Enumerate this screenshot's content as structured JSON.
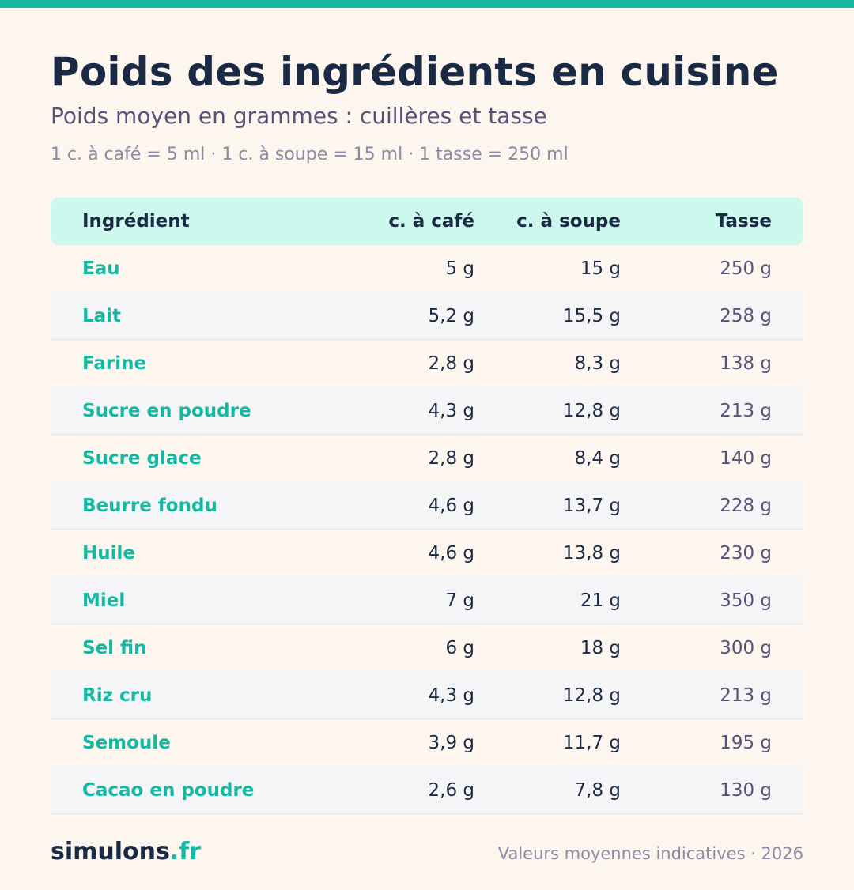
{
  "header": {
    "title": "Poids des ingrédients en cuisine",
    "subtitle": "Poids moyen en grammes : cuillères et tasse",
    "note": "1 c. à café = 5 ml · 1 c. à soupe = 15 ml · 1 tasse = 250 ml"
  },
  "table": {
    "columns": [
      "Ingrédient",
      "c. à café",
      "c. à soupe",
      "Tasse"
    ],
    "rows": [
      [
        "Eau",
        "5 g",
        "15 g",
        "250 g"
      ],
      [
        "Lait",
        "5,2 g",
        "15,5 g",
        "258 g"
      ],
      [
        "Farine",
        "2,8 g",
        "8,3 g",
        "138 g"
      ],
      [
        "Sucre en poudre",
        "4,3 g",
        "12,8 g",
        "213 g"
      ],
      [
        "Sucre glace",
        "2,8 g",
        "8,4 g",
        "140 g"
      ],
      [
        "Beurre fondu",
        "4,6 g",
        "13,7 g",
        "228 g"
      ],
      [
        "Huile",
        "4,6 g",
        "13,8 g",
        "230 g"
      ],
      [
        "Miel",
        "7 g",
        "21 g",
        "350 g"
      ],
      [
        "Sel fin",
        "6 g",
        "18 g",
        "300 g"
      ],
      [
        "Riz cru",
        "4,3 g",
        "12,8 g",
        "213 g"
      ],
      [
        "Semoule",
        "3,9 g",
        "11,7 g",
        "195 g"
      ],
      [
        "Cacao en poudre",
        "2,6 g",
        "7,8 g",
        "130 g"
      ]
    ]
  },
  "footer": {
    "brand_name": "simulons",
    "brand_tld": ".fr",
    "note": "Valeurs moyennes indicatives · 2026"
  },
  "colors": {
    "accent": "#17b8a3",
    "header_bg": "#ccf8ee",
    "background": "#fdf6ef",
    "text_dark": "#1b2a44"
  }
}
